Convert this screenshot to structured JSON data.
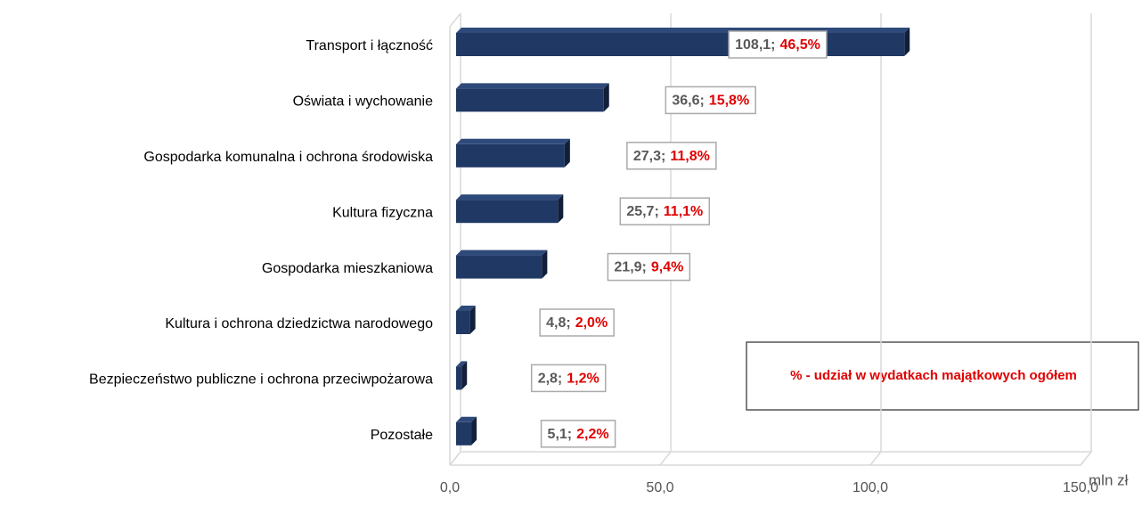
{
  "chart_data": {
    "type": "bar3d_horizontal",
    "categories": [
      "Transport i łączność",
      "Oświata i wychowanie",
      "Gospodarka komunalna i ochrona środowiska",
      "Kultura fizyczna",
      "Gospodarka mieszkaniowa",
      "Kultura i ochrona dziedzictwa narodowego",
      "Bezpieczeństwo publiczne i ochrona przeciwpożarowa",
      "Pozostałe"
    ],
    "values": [
      108.1,
      36.6,
      27.3,
      25.7,
      21.9,
      4.8,
      2.8,
      5.1
    ],
    "value_labels": [
      "108,1;",
      "36,6;",
      "27,3;",
      "25,7;",
      "21,9;",
      "4,8;",
      "2,8;",
      "5,1;"
    ],
    "shares": [
      46.5,
      15.8,
      11.8,
      11.1,
      9.4,
      2.0,
      1.2,
      2.2
    ],
    "share_labels": [
      "46,5%",
      "15,8%",
      "11,8%",
      "11,1%",
      "9,4%",
      "2,0%",
      "1,2%",
      "2,2%"
    ],
    "color": "#1f3864",
    "xlim": [
      0,
      150
    ],
    "xticks": [
      {
        "value": 0,
        "label": "0,0"
      },
      {
        "value": 50,
        "label": "50,0"
      },
      {
        "value": 100,
        "label": "100,0"
      },
      {
        "value": 150,
        "label": "150,0"
      }
    ],
    "x_axis_label": "mln zł",
    "legend_note": "% - udział w wydatkach majątkowych ogółem",
    "grid": true
  }
}
